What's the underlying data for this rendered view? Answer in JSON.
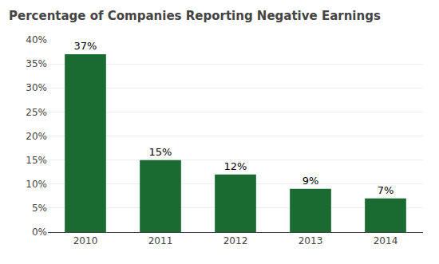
{
  "chart_data": {
    "type": "bar",
    "title": "Percentage of Companies Reporting Negative Earnings",
    "categories": [
      "2010",
      "2011",
      "2012",
      "2013",
      "2014"
    ],
    "values": [
      37,
      15,
      12,
      9,
      7
    ],
    "value_labels": [
      "37%",
      "15%",
      "12%",
      "9%",
      "7%"
    ],
    "data_labels": true,
    "color": "#1a6b32",
    "ylim": [
      0,
      40
    ],
    "yticks": [
      {
        "value": 0,
        "label": "0%"
      },
      {
        "value": 5,
        "label": "5%"
      },
      {
        "value": 10,
        "label": "10%"
      },
      {
        "value": 15,
        "label": "15%"
      },
      {
        "value": 20,
        "label": "20%"
      },
      {
        "value": 25,
        "label": "25%"
      },
      {
        "value": 30,
        "label": "30%"
      },
      {
        "value": 35,
        "label": "35%"
      },
      {
        "value": 40,
        "label": "40%"
      }
    ],
    "grid": true
  }
}
